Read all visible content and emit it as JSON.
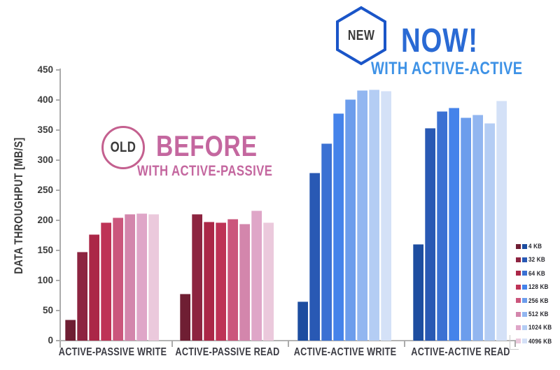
{
  "badges": {
    "old": {
      "badge_label": "OLD",
      "title": "BEFORE",
      "subtitle": "WITH ACTIVE-PASSIVE",
      "accent": "#C4679F",
      "circle_border": "#C4608F"
    },
    "new": {
      "badge_label": "NEW",
      "title": "NOW!",
      "subtitle": "WITH ACTIVE-ACTIVE",
      "title_color": "#2A6AD4",
      "subtitle_color": "#3E92E6",
      "hex_border": "#1A55C8"
    }
  },
  "chart_data": {
    "type": "bar",
    "title": "",
    "ylabel": "DATA THROUGHPUT [MB/S]",
    "xlabel": "",
    "ylim": [
      0,
      450
    ],
    "yticks": [
      0,
      50,
      100,
      150,
      200,
      250,
      300,
      350,
      400,
      450
    ],
    "grid": false,
    "legend_position": "right",
    "categories": [
      "ACTIVE-PASSIVE WRITE",
      "ACTIVE-PASSIVE READ",
      "ACTIVE-ACTIVE WRITE",
      "ACTIVE-ACTIVE READ"
    ],
    "block_sizes": [
      "4 KB",
      "32 KB",
      "64 KB",
      "128 KB",
      "256 KB",
      "512 KB",
      "1024 KB",
      "4096 KB"
    ],
    "series": [
      {
        "name": "ACTIVE-PASSIVE WRITE",
        "palette": "red",
        "values": [
          35,
          148,
          177,
          196,
          205,
          210,
          212,
          210
        ]
      },
      {
        "name": "ACTIVE-PASSIVE READ",
        "palette": "red",
        "values": [
          78,
          211,
          198,
          197,
          202,
          194,
          216,
          196
        ]
      },
      {
        "name": "ACTIVE-ACTIVE WRITE",
        "palette": "blue",
        "values": [
          65,
          279,
          328,
          378,
          401,
          416,
          418,
          415
        ]
      },
      {
        "name": "ACTIVE-ACTIVE READ",
        "palette": "blue",
        "values": [
          160,
          353,
          381,
          387,
          371,
          376,
          362,
          399
        ]
      }
    ],
    "palettes": {
      "red": [
        "#6F1E33",
        "#8D2440",
        "#AB2747",
        "#BE3356",
        "#CB567C",
        "#D386AC",
        "#DFA6C8",
        "#EBC9DC"
      ],
      "blue": [
        "#1D4DA0",
        "#2959B4",
        "#3B71D3",
        "#4583EA",
        "#6C9DEC",
        "#92B6F0",
        "#B4CDF4",
        "#D4E1F7"
      ]
    },
    "axis_color": "#ABABAB"
  },
  "legend": {
    "items": [
      "4 KB",
      "32 KB",
      "64 KB",
      "128 KB",
      "256 KB",
      "512 KB",
      "1024 KB",
      "4096 KB"
    ]
  }
}
